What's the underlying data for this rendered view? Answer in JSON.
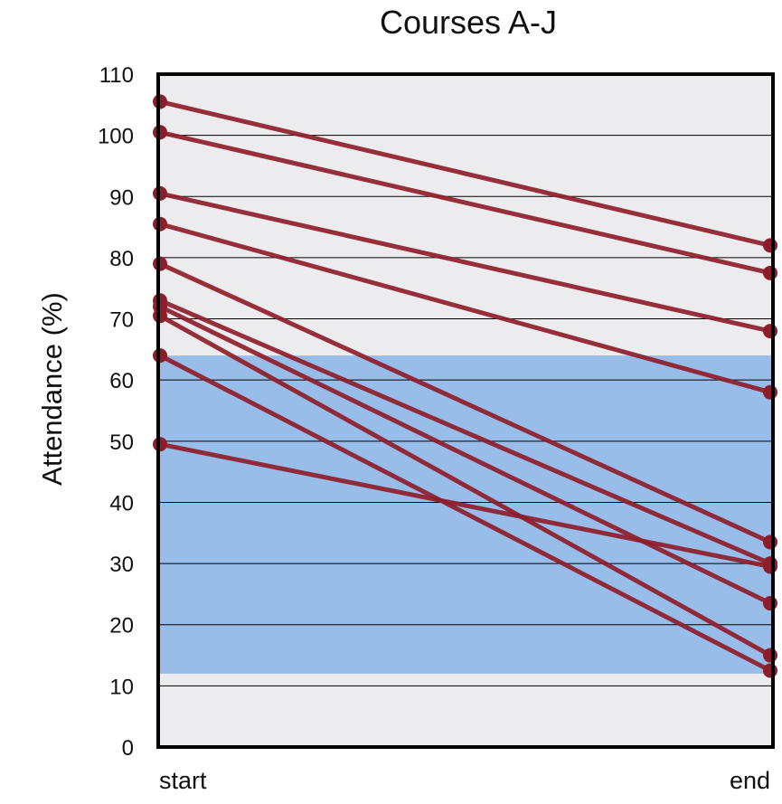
{
  "chart_data": {
    "type": "line",
    "title": "Courses A-J",
    "xlabel": "",
    "ylabel": "Attendance (%)",
    "categories": [
      "start",
      "end"
    ],
    "ylim": [
      0,
      110
    ],
    "yticks": [
      "0",
      "10",
      "20",
      "30",
      "40",
      "50",
      "60",
      "70",
      "80",
      "90",
      "100",
      "110"
    ],
    "grid": true,
    "highlight_band": {
      "from": 12,
      "to": 64
    },
    "series": [
      {
        "values": [
          105.5,
          82
        ]
      },
      {
        "values": [
          100.5,
          77.5
        ]
      },
      {
        "values": [
          90.5,
          68
        ]
      },
      {
        "values": [
          85.5,
          58
        ]
      },
      {
        "values": [
          79,
          33.5
        ]
      },
      {
        "values": [
          73,
          30
        ]
      },
      {
        "values": [
          72,
          23.5
        ]
      },
      {
        "values": [
          70.5,
          15
        ]
      },
      {
        "values": [
          64,
          12.5
        ]
      },
      {
        "values": [
          49.5,
          29.5
        ]
      }
    ],
    "colors": {
      "line": "#8e1d2b",
      "band": "#99bde9",
      "background": "#ececef",
      "grid": "#000000"
    }
  }
}
